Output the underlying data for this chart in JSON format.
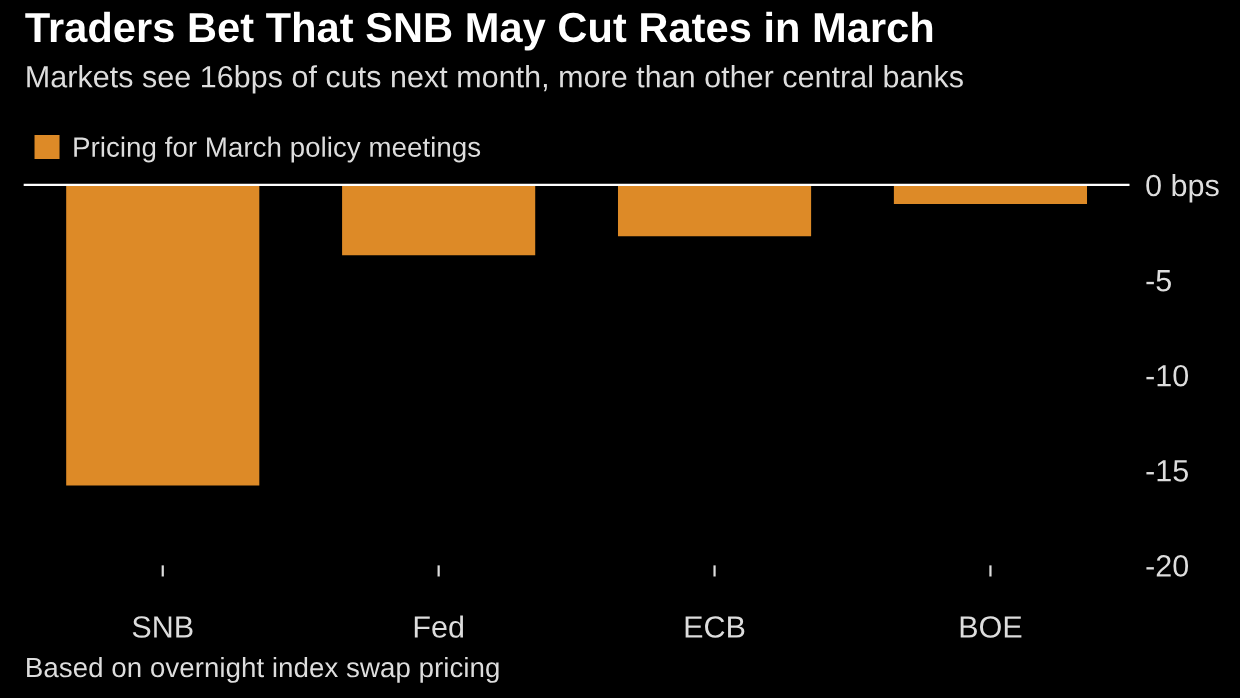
{
  "chart_data": {
    "type": "bar",
    "title": "Traders Bet That SNB May Cut Rates in March",
    "subtitle": "Markets see 16bps of cuts next month, more than other central banks",
    "categories": [
      "SNB",
      "Fed",
      "ECB",
      "BOE"
    ],
    "series": [
      {
        "name": "Pricing for March policy meetings",
        "color": "#dd8a27",
        "values": [
          -15.8,
          -3.7,
          -2.7,
          -1.0
        ]
      }
    ],
    "ylim": [
      -20,
      0
    ],
    "yticks": [
      {
        "value": 0,
        "label": "0 bps"
      },
      -5,
      -10,
      -15,
      -20
    ],
    "legend": "top left",
    "grid": false,
    "annotations": [
      "Based on overnight index swap pricing"
    ]
  }
}
